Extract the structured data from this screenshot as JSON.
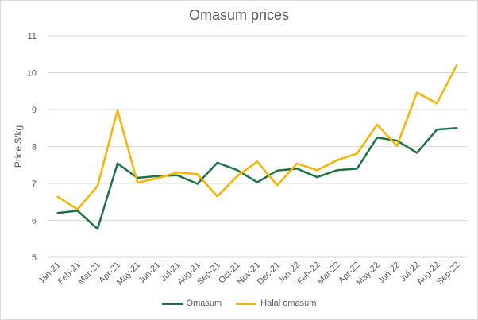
{
  "chart_data": {
    "type": "line",
    "title": "Omasum prices",
    "xlabel": "",
    "ylabel": "Price $/kg",
    "ylim": [
      5,
      11
    ],
    "yticks": [
      "5",
      "6",
      "7",
      "8",
      "9",
      "10",
      "11"
    ],
    "grid": true,
    "legend_position": "bottom",
    "categories": [
      "Jan-21",
      "Feb-21",
      "Mar-21",
      "Apr-21",
      "May-21",
      "Jun-21",
      "Jul-21",
      "Aug-21",
      "Sep-21",
      "Oct-21",
      "Nov-21",
      "Dec-21",
      "Jan-22",
      "Feb-22",
      "Mar-22",
      "Apr-22",
      "May-22",
      "Jun-22",
      "Jul-22",
      "Aug-22",
      "Sep-22"
    ],
    "series": [
      {
        "name": "Omasum",
        "color": "#1e7145",
        "values": [
          6.2,
          6.26,
          5.77,
          7.54,
          7.15,
          7.2,
          7.22,
          6.99,
          7.56,
          7.36,
          7.03,
          7.35,
          7.4,
          7.17,
          7.36,
          7.4,
          8.24,
          8.16,
          7.83,
          8.46,
          8.5
        ]
      },
      {
        "name": "Halal omasum",
        "color": "#f5b400",
        "values": [
          6.64,
          6.3,
          6.93,
          8.98,
          7.02,
          7.14,
          7.3,
          7.25,
          6.65,
          7.2,
          7.59,
          6.95,
          7.54,
          7.36,
          7.63,
          7.81,
          8.59,
          8.02,
          9.46,
          9.17,
          10.21
        ]
      }
    ]
  }
}
